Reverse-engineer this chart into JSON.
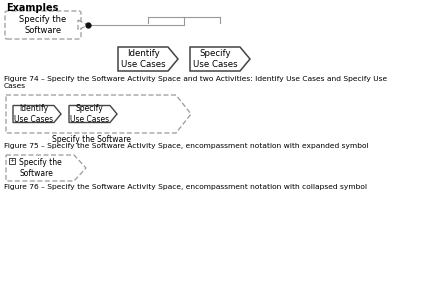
{
  "title": "Examples",
  "bg_color": "#ffffff",
  "text_color": "#000000",
  "fig74_caption": "Figure 74 – Specify the Software Activity Space and two Activities: Identify Use Cases and Specify Use\nCases",
  "fig75_caption": "Figure 75 – Specify the Software Activity Space, encompassment notation with expanded symbol",
  "fig76_caption": "Figure 76 – Specify the Software Activity Space, encompassment notation with collapsed symbol",
  "activity_space_label": "Specify the\nSoftware",
  "identify_label": "Identify\nUse Cases",
  "specify_label": "Specify\nUse Cases",
  "specify_the_software_label": "Specify the Software",
  "specify_software_collapsed": "Specify the\nSoftware",
  "dash_style": [
    4,
    2
  ],
  "line_color": "#999999",
  "shape_color": "#444444"
}
